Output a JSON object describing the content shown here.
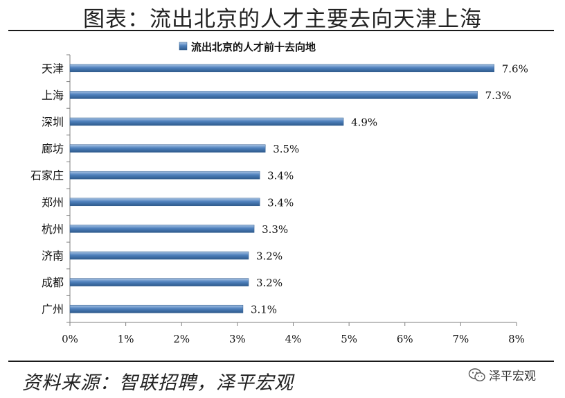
{
  "figure_title": "图表：流出北京的人才主要去向天津上海",
  "source": "资料来源：智联招聘，泽平宏观",
  "watermark": "泽平宏观",
  "colors": {
    "bar": "#4f81bd",
    "bar_light": "#a9c4e4",
    "bar_dark": "#2e5a8c"
  },
  "chart_data": {
    "type": "bar",
    "orientation": "horizontal",
    "legend": "流出北京的人才前十去向地",
    "legend_position": "top-center",
    "categories": [
      "天津",
      "上海",
      "深圳",
      "廊坊",
      "石家庄",
      "郑州",
      "杭州",
      "济南",
      "成都",
      "广州"
    ],
    "values": [
      7.6,
      7.3,
      4.9,
      3.5,
      3.4,
      3.4,
      3.3,
      3.2,
      3.2,
      3.1
    ],
    "value_labels": [
      "7.6%",
      "7.3%",
      "4.9%",
      "3.5%",
      "3.4%",
      "3.4%",
      "3.3%",
      "3.2%",
      "3.2%",
      "3.1%"
    ],
    "xlim": [
      0,
      8
    ],
    "xticks": [
      "0%",
      "1%",
      "2%",
      "3%",
      "4%",
      "5%",
      "6%",
      "7%",
      "8%"
    ],
    "grid": false
  }
}
